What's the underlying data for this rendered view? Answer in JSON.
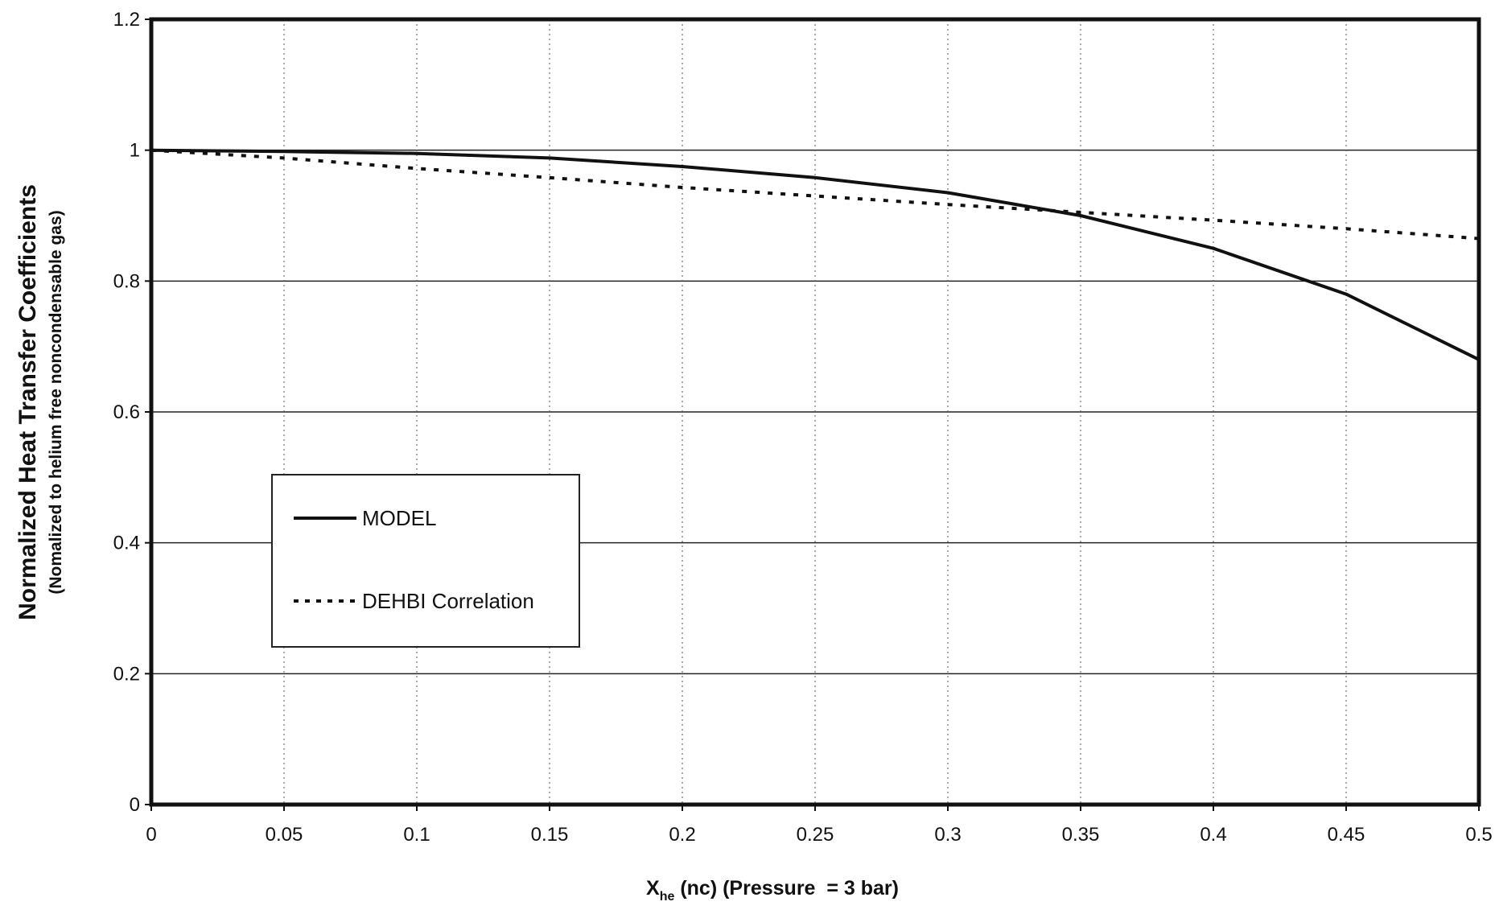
{
  "chart_data": {
    "type": "line",
    "xlabel": {
      "main": "X",
      "sub": "he",
      "rest": " (nc) (Pressure  = 3 bar)"
    },
    "ylabel": "Normalized  Heat Transfer Coefficients",
    "ylabel2": "(Nomalized to helium free noncondensable gas)",
    "xlim": [
      0,
      0.5
    ],
    "ylim": [
      0,
      1.2
    ],
    "xticks": [
      0,
      0.05,
      0.1,
      0.15,
      0.2,
      0.25,
      0.3,
      0.35,
      0.4,
      0.45,
      0.5
    ],
    "xtick_labels": [
      "0",
      "0.05",
      "0.1",
      "0.15",
      "0.2",
      "0.25",
      "0.3",
      "0.35",
      "0.4",
      "0.45",
      "0.5"
    ],
    "yticks": [
      0,
      0.2,
      0.4,
      0.6,
      0.8,
      1,
      1.2
    ],
    "ytick_labels": [
      "0",
      "0.2",
      "0.4",
      "0.6",
      "0.8",
      "1",
      "1.2"
    ],
    "grid": {
      "horizontal": true,
      "vertical": true,
      "vertical_style": "dotted"
    },
    "legend": {
      "position": "center-left",
      "entries": [
        "MODEL",
        "DEHBI Correlation"
      ]
    },
    "series": [
      {
        "name": "MODEL",
        "style": "solid",
        "x": [
          0,
          0.05,
          0.1,
          0.15,
          0.2,
          0.25,
          0.3,
          0.35,
          0.4,
          0.45,
          0.5
        ],
        "y": [
          1.0,
          0.998,
          0.995,
          0.988,
          0.975,
          0.958,
          0.935,
          0.9,
          0.85,
          0.78,
          0.68
        ]
      },
      {
        "name": "DEHBI Correlation",
        "style": "dotted",
        "x": [
          0,
          0.05,
          0.1,
          0.15,
          0.2,
          0.25,
          0.3,
          0.35,
          0.4,
          0.45,
          0.5
        ],
        "y": [
          1.0,
          0.988,
          0.972,
          0.958,
          0.943,
          0.93,
          0.917,
          0.905,
          0.893,
          0.88,
          0.865
        ]
      }
    ],
    "colors": {
      "line": "#111111",
      "grid": "#333333",
      "background": "#ffffff"
    }
  }
}
